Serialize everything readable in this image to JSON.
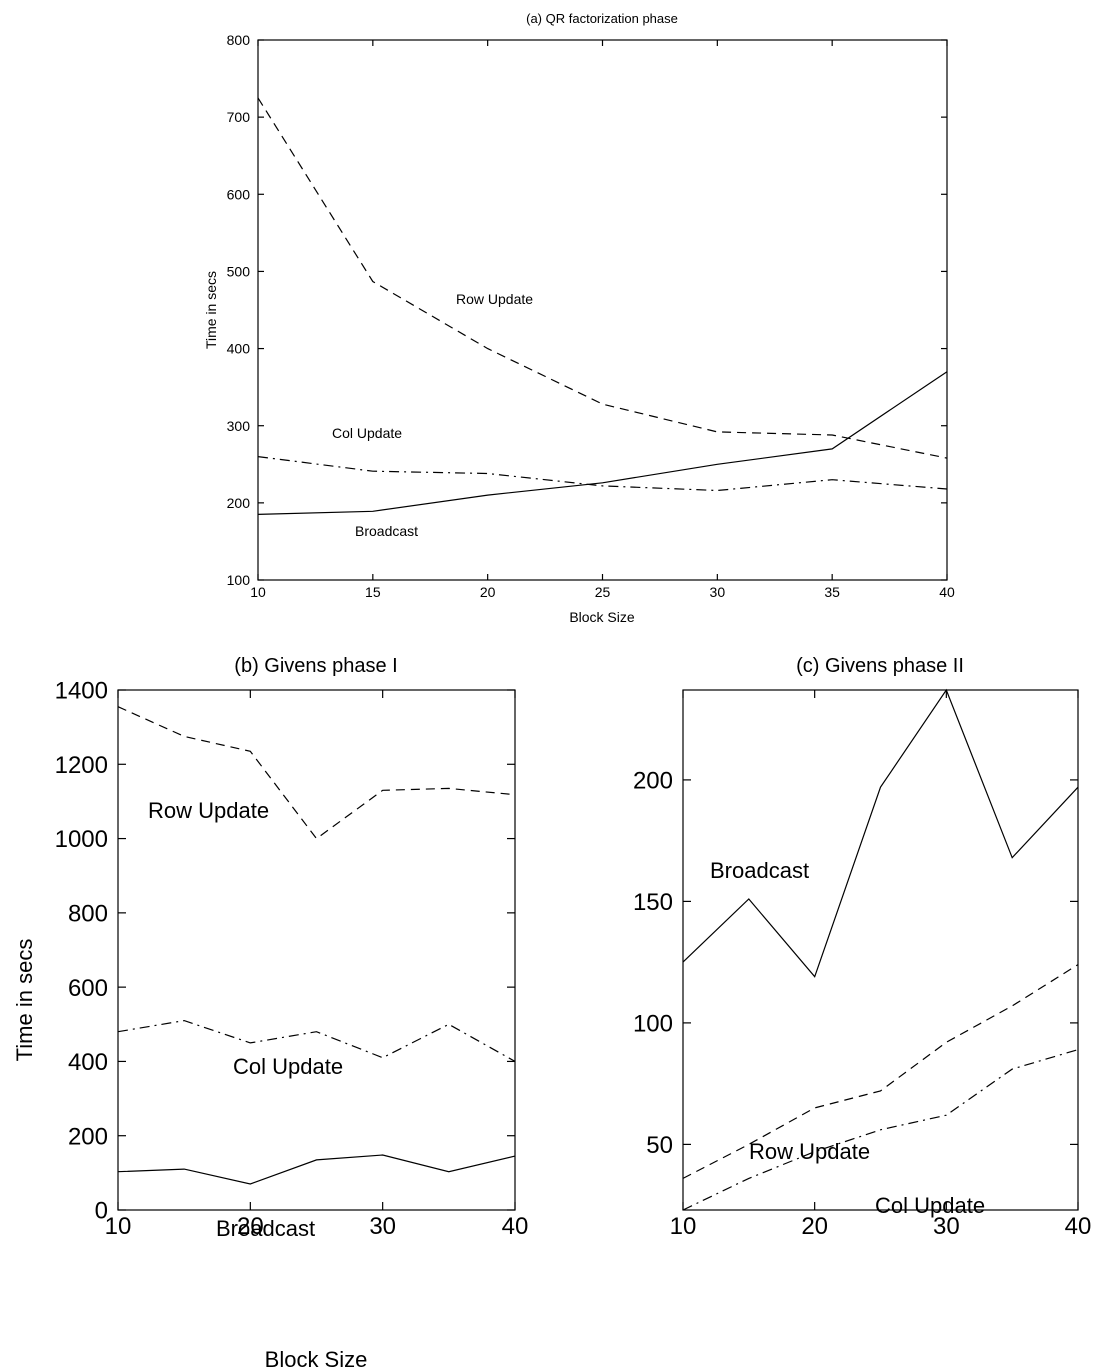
{
  "chart_data": [
    {
      "type": "line",
      "title": "(a) QR factorization phase",
      "xlabel": "Block Size",
      "ylabel": "Time in secs",
      "xlim": [
        10,
        40
      ],
      "ylim": [
        100,
        800
      ],
      "xticks": [
        10,
        15,
        20,
        25,
        30,
        35,
        40
      ],
      "yticks": [
        100,
        200,
        300,
        400,
        500,
        600,
        700,
        800
      ],
      "x": [
        10,
        15,
        20,
        25,
        30,
        35,
        40
      ],
      "series": [
        {
          "name": "Row Update",
          "style": "dashed",
          "values": [
            725,
            487,
            400,
            328,
            292,
            288,
            258
          ]
        },
        {
          "name": "Col Update",
          "style": "dashdot",
          "values": [
            260,
            241,
            238,
            222,
            216,
            230,
            218
          ]
        },
        {
          "name": "Broadcast",
          "style": "solid",
          "values": [
            185,
            189,
            210,
            226,
            250,
            270,
            370
          ]
        }
      ]
    },
    {
      "type": "line",
      "title": "(b) Givens phase I",
      "xlabel": "Block Size",
      "ylabel": "Time in secs",
      "xlim": [
        10,
        40
      ],
      "ylim": [
        0,
        1400
      ],
      "xticks": [
        10,
        20,
        30,
        40
      ],
      "yticks": [
        0,
        200,
        400,
        600,
        800,
        1000,
        1200,
        1400
      ],
      "x": [
        10,
        15,
        20,
        25,
        30,
        35,
        40
      ],
      "series": [
        {
          "name": "Row Update",
          "style": "dashed",
          "values": [
            1355,
            1275,
            1235,
            1000,
            1130,
            1135,
            1118
          ]
        },
        {
          "name": "Col Update",
          "style": "dashdot",
          "values": [
            480,
            510,
            450,
            480,
            410,
            500,
            400
          ]
        },
        {
          "name": "Broadcast",
          "style": "solid",
          "values": [
            103,
            110,
            70,
            135,
            148,
            103,
            145
          ]
        }
      ]
    },
    {
      "type": "line",
      "title": "(c) Givens phase II",
      "xlabel": "",
      "ylabel": "",
      "xlim": [
        10,
        40
      ],
      "ylim": [
        23,
        237
      ],
      "xticks": [
        10,
        20,
        30,
        40
      ],
      "yticks": [
        50,
        100,
        150,
        200
      ],
      "x": [
        10,
        15,
        20,
        25,
        30,
        35,
        40
      ],
      "series": [
        {
          "name": "Broadcast",
          "style": "solid",
          "values": [
            125,
            151,
            119,
            197,
            237,
            168,
            197
          ]
        },
        {
          "name": "Row Update",
          "style": "dashed",
          "values": [
            36,
            50,
            65,
            72,
            92,
            107,
            124
          ]
        },
        {
          "name": "Col Update",
          "style": "dashdot",
          "values": [
            23,
            36,
            47,
            56,
            62,
            81,
            89
          ]
        }
      ]
    }
  ]
}
